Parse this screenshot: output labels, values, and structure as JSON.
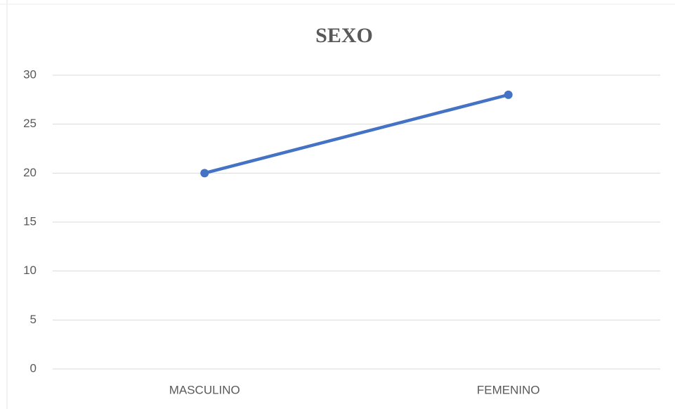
{
  "chart_data": {
    "type": "line",
    "title": "SEXO",
    "categories": [
      "MASCULINO",
      "FEMENINO"
    ],
    "values": [
      20,
      28
    ],
    "color": "#4472c4",
    "ylim": [
      0,
      30
    ],
    "yticks": [
      0,
      5,
      10,
      15,
      20,
      25,
      30
    ],
    "grid": true
  }
}
